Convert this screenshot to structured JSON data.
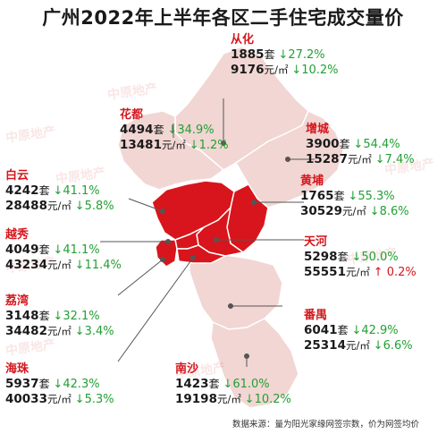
{
  "title": "广州2022年上半年各区二手住宅成交量价",
  "watermark_text": "中原地产",
  "colors": {
    "map_light": "#f1d6d3",
    "map_dark": "#d8151c",
    "boundary": "#ffffff",
    "name_red": "#d4161d",
    "down_green": "#22a033",
    "up_red": "#d4161d"
  },
  "districts": [
    {
      "id": "conghua",
      "name": "从化",
      "volume": "1885",
      "vol_unit": "套",
      "vol_dir": "down",
      "vol_change": "27.2%",
      "price": "9176",
      "price_unit": "元/㎡",
      "price_dir": "down",
      "price_change": "10.2%",
      "highlight": false
    },
    {
      "id": "huadu",
      "name": "花都",
      "volume": "4494",
      "vol_unit": "套",
      "vol_dir": "down",
      "vol_change": "34.9%",
      "price": "13481",
      "price_unit": "元/㎡",
      "price_dir": "down",
      "price_change": "1.2%",
      "highlight": false
    },
    {
      "id": "zengcheng",
      "name": "增城",
      "volume": "3900",
      "vol_unit": "套",
      "vol_dir": "down",
      "vol_change": "54.4%",
      "price": "15287",
      "price_unit": "元/㎡",
      "price_dir": "down",
      "price_change": "7.4%",
      "highlight": false
    },
    {
      "id": "baiyun",
      "name": "白云",
      "volume": "4242",
      "vol_unit": "套",
      "vol_dir": "down",
      "vol_change": "41.1%",
      "price": "28488",
      "price_unit": "元/㎡",
      "price_dir": "down",
      "price_change": "5.8%",
      "highlight": true
    },
    {
      "id": "huangpu",
      "name": "黄埔",
      "volume": "1765",
      "vol_unit": "套",
      "vol_dir": "down",
      "vol_change": "55.3%",
      "price": "30529",
      "price_unit": "元/㎡",
      "price_dir": "down",
      "price_change": "8.6%",
      "highlight": true
    },
    {
      "id": "yuexiu",
      "name": "越秀",
      "volume": "4049",
      "vol_unit": "套",
      "vol_dir": "down",
      "vol_change": "41.1%",
      "price": "43234",
      "price_unit": "元/㎡",
      "price_dir": "down",
      "price_change": "11.4%",
      "highlight": true
    },
    {
      "id": "tianhe",
      "name": "天河",
      "volume": "5298",
      "vol_unit": "套",
      "vol_dir": "down",
      "vol_change": "50.0%",
      "price": "55551",
      "price_unit": "元/㎡",
      "price_dir": "up",
      "price_change": "0.2%",
      "highlight": true
    },
    {
      "id": "liwan",
      "name": "荔湾",
      "volume": "3148",
      "vol_unit": "套",
      "vol_dir": "down",
      "vol_change": "32.1%",
      "price": "34482",
      "price_unit": "元/㎡",
      "price_dir": "down",
      "price_change": "3.4%",
      "highlight": true
    },
    {
      "id": "panyu",
      "name": "番禺",
      "volume": "6041",
      "vol_unit": "套",
      "vol_dir": "down",
      "vol_change": "42.9%",
      "price": "25314",
      "price_unit": "元/㎡",
      "price_dir": "down",
      "price_change": "6.6%",
      "highlight": false
    },
    {
      "id": "haizhu",
      "name": "海珠",
      "volume": "5937",
      "vol_unit": "套",
      "vol_dir": "down",
      "vol_change": "42.3%",
      "price": "40033",
      "price_unit": "元/㎡",
      "price_dir": "down",
      "price_change": "5.3%",
      "highlight": true
    },
    {
      "id": "nansha",
      "name": "南沙",
      "volume": "1423",
      "vol_unit": "套",
      "vol_dir": "down",
      "vol_change": "61.0%",
      "price": "19198",
      "price_unit": "元/㎡",
      "price_dir": "down",
      "price_change": "10.2%",
      "highlight": false
    }
  ],
  "arrows": {
    "down": "↓",
    "up": "↑"
  },
  "source_note": "数据来源：量为阳光家缘网签宗数，价为网签均价"
}
